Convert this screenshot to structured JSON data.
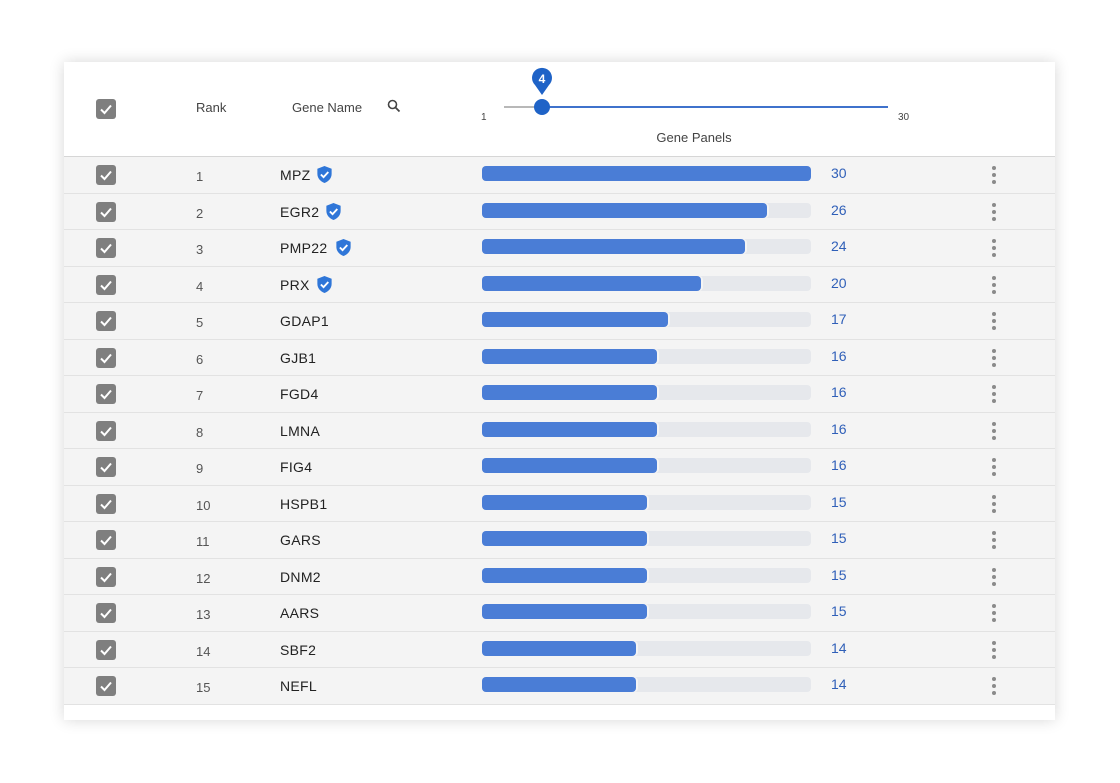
{
  "table": {
    "header": {
      "rank_label": "Rank",
      "gene_name_label": "Gene Name",
      "slider": {
        "value": 4,
        "min_label": "1",
        "max_label": "30",
        "value_label": "4",
        "caption": "Gene Panels"
      }
    },
    "max_count": 30,
    "rows": [
      {
        "rank": "1",
        "gene": "MPZ",
        "verified": true,
        "count": 30,
        "count_label": "30"
      },
      {
        "rank": "2",
        "gene": "EGR2",
        "verified": true,
        "count": 26,
        "count_label": "26"
      },
      {
        "rank": "3",
        "gene": "PMP22",
        "verified": true,
        "count": 24,
        "count_label": "24"
      },
      {
        "rank": "4",
        "gene": "PRX",
        "verified": true,
        "count": 20,
        "count_label": "20"
      },
      {
        "rank": "5",
        "gene": "GDAP1",
        "verified": false,
        "count": 17,
        "count_label": "17"
      },
      {
        "rank": "6",
        "gene": "GJB1",
        "verified": false,
        "count": 16,
        "count_label": "16"
      },
      {
        "rank": "7",
        "gene": "FGD4",
        "verified": false,
        "count": 16,
        "count_label": "16"
      },
      {
        "rank": "8",
        "gene": "LMNA",
        "verified": false,
        "count": 16,
        "count_label": "16"
      },
      {
        "rank": "9",
        "gene": "FIG4",
        "verified": false,
        "count": 16,
        "count_label": "16"
      },
      {
        "rank": "10",
        "gene": "HSPB1",
        "verified": false,
        "count": 15,
        "count_label": "15"
      },
      {
        "rank": "11",
        "gene": "GARS",
        "verified": false,
        "count": 15,
        "count_label": "15"
      },
      {
        "rank": "12",
        "gene": "DNM2",
        "verified": false,
        "count": 15,
        "count_label": "15"
      },
      {
        "rank": "13",
        "gene": "AARS",
        "verified": false,
        "count": 15,
        "count_label": "15"
      },
      {
        "rank": "14",
        "gene": "SBF2",
        "verified": false,
        "count": 14,
        "count_label": "14"
      },
      {
        "rank": "15",
        "gene": "NEFL",
        "verified": false,
        "count": 14,
        "count_label": "14"
      }
    ]
  },
  "icons": {
    "checkbox": "checkbox-checked-icon",
    "search": "search-icon",
    "verified": "verified-badge-icon",
    "menu": "more-vertical-icon"
  },
  "colors": {
    "bar_fill": "#4a7dd6",
    "bar_track": "#e6e8ec",
    "count_text": "#2f5fb8",
    "slider_accent": "#1f63c7",
    "checkbox": "#7f7f7f"
  }
}
